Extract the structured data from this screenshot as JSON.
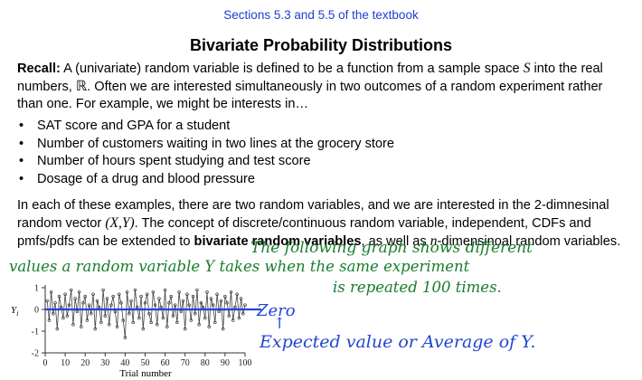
{
  "header": {
    "sections_link": "Sections 5.3 and 5.5 of the textbook"
  },
  "title": "Bivariate Probability Distributions",
  "intro": {
    "recall_label": "Recall:",
    "text_1": " A (univariate) random variable is defined to be a function from a sample space ",
    "symbol_S": "S",
    "text_2": " into the real numbers, ",
    "symbol_R": "ℝ",
    "text_3": ". Often we are interested simultaneously in two outcomes of a random experiment rather than one. For example, we might be interests in…"
  },
  "examples": [
    "SAT score and GPA for a student",
    "Number of customers waiting in two lines at the grocery store",
    "Number of hours spent studying and test score",
    "Dosage of a drug and blood pressure"
  ],
  "body": {
    "text_1": "In each of these examples, there are two random variables, and we are interested in the 2-dimnesinal random vector ",
    "vector": "(X,Y)",
    "text_2": ". The concept of discrete/continuous random variable, independent, CDFs and pmfs/pdfs can be extended to ",
    "bold_phrase": "bivariate random variables",
    "text_3": ", as well as ",
    "n_symbol": "n",
    "text_4": "-dimensinoal random variables."
  },
  "annotations": {
    "line_1": "The following graph shows different",
    "line_2": "values a random variable Y takes when the same experiment",
    "line_3": "is repeated 100 times.",
    "zero_label": "Zero",
    "arrow": "↑",
    "expected_value": "Expected value or Average of Y."
  },
  "chart_data": {
    "type": "line",
    "xlabel": "Trial number",
    "ylabel": "Y_i",
    "ylabel_main": "Y",
    "ylabel_sub": "i",
    "xlim": [
      0,
      100
    ],
    "ylim": [
      -2,
      1
    ],
    "x_ticks": [
      0,
      10,
      20,
      30,
      40,
      50,
      60,
      70,
      80,
      90,
      100
    ],
    "y_ticks": [
      1,
      0,
      -1,
      -2
    ],
    "reference_line": 0,
    "x": [
      1,
      2,
      3,
      4,
      5,
      6,
      7,
      8,
      9,
      10,
      11,
      12,
      13,
      14,
      15,
      16,
      17,
      18,
      19,
      20,
      21,
      22,
      23,
      24,
      25,
      26,
      27,
      28,
      29,
      30,
      31,
      32,
      33,
      34,
      35,
      36,
      37,
      38,
      39,
      40,
      41,
      42,
      43,
      44,
      45,
      46,
      47,
      48,
      49,
      50,
      51,
      52,
      53,
      54,
      55,
      56,
      57,
      58,
      59,
      60,
      61,
      62,
      63,
      64,
      65,
      66,
      67,
      68,
      69,
      70,
      71,
      72,
      73,
      74,
      75,
      76,
      77,
      78,
      79,
      80,
      81,
      82,
      83,
      84,
      85,
      86,
      87,
      88,
      89,
      90,
      91,
      92,
      93,
      94,
      95,
      96,
      97,
      98,
      99,
      100
    ],
    "values": [
      0.4,
      -0.5,
      0.8,
      -0.2,
      0.3,
      -0.9,
      0.6,
      0.1,
      -0.4,
      0.7,
      -0.3,
      0.2,
      0.9,
      -0.7,
      0.5,
      -0.1,
      0.8,
      -0.8,
      0.3,
      0.6,
      -0.5,
      0.2,
      -0.2,
      0.7,
      -0.9,
      0.4,
      0.1,
      -0.6,
      0.9,
      -0.3,
      0.5,
      -0.7,
      0.2,
      0.6,
      -0.1,
      -0.8,
      0.7,
      0.3,
      -0.5,
      -1.3,
      0.8,
      -0.2,
      0.4,
      -0.6,
      0.9,
      0.1,
      -0.4,
      0.6,
      -0.9,
      0.3,
      0.7,
      -0.2,
      -0.6,
      0.8,
      0.2,
      -0.7,
      0.5,
      0.1,
      -0.4,
      0.9,
      -0.8,
      0.3,
      0.6,
      -0.3,
      0.2,
      -0.6,
      0.8,
      -0.1,
      0.4,
      -0.9,
      0.7,
      0.2,
      -0.5,
      0.6,
      -0.2,
      0.9,
      -0.7,
      0.3,
      0.1,
      -0.4,
      0.8,
      -0.8,
      0.5,
      0.2,
      -0.6,
      0.7,
      -0.1,
      0.4,
      -0.9,
      0.6,
      0.3,
      -0.3,
      0.8,
      -0.5,
      0.1,
      0.7,
      -0.4,
      0.5,
      -0.2,
      0.2
    ]
  }
}
